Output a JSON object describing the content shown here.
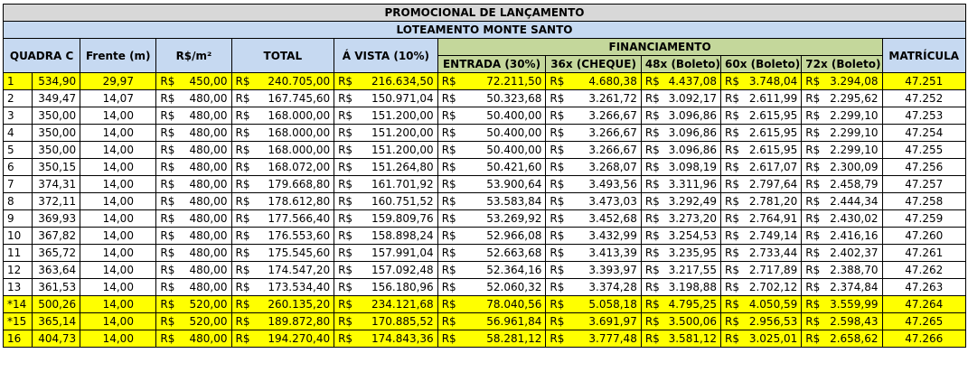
{
  "title": "PROMOCIONAL DE LANÇAMENTO",
  "subtitle": "LOTEAMENTO MONTE SANTO",
  "headers": {
    "quadra": "QUADRA C",
    "frente": "Frente (m)",
    "rs_m2": "R$/m²",
    "total": "TOTAL",
    "avista": "Á VISTA (10%)",
    "financiamento": "FINANCIAMENTO",
    "entrada": "ENTRADA (30%)",
    "p36": "36x (CHEQUE)",
    "p48": "48x (Boleto)",
    "p60": "60x (Boleto)",
    "p72": "72x (Boleto)",
    "matricula": "MATRÍCULA"
  },
  "currency": "R$",
  "highlight_color": "#ffff00",
  "rows": [
    {
      "lote": "1",
      "area": "534,90",
      "frente": "29,97",
      "m2": "450,00",
      "total": "240.705,00",
      "avista": "216.634,50",
      "entrada": "72.211,50",
      "p36": "4.680,38",
      "p48": "4.437,08",
      "p60": "3.748,04",
      "p72": "3.294,08",
      "matricula": "47.251",
      "highlight": true
    },
    {
      "lote": "2",
      "area": "349,47",
      "frente": "14,07",
      "m2": "480,00",
      "total": "167.745,60",
      "avista": "150.971,04",
      "entrada": "50.323,68",
      "p36": "3.261,72",
      "p48": "3.092,17",
      "p60": "2.611,99",
      "p72": "2.295,62",
      "matricula": "47.252",
      "highlight": false
    },
    {
      "lote": "3",
      "area": "350,00",
      "frente": "14,00",
      "m2": "480,00",
      "total": "168.000,00",
      "avista": "151.200,00",
      "entrada": "50.400,00",
      "p36": "3.266,67",
      "p48": "3.096,86",
      "p60": "2.615,95",
      "p72": "2.299,10",
      "matricula": "47.253",
      "highlight": false
    },
    {
      "lote": "4",
      "area": "350,00",
      "frente": "14,00",
      "m2": "480,00",
      "total": "168.000,00",
      "avista": "151.200,00",
      "entrada": "50.400,00",
      "p36": "3.266,67",
      "p48": "3.096,86",
      "p60": "2.615,95",
      "p72": "2.299,10",
      "matricula": "47.254",
      "highlight": false
    },
    {
      "lote": "5",
      "area": "350,00",
      "frente": "14,00",
      "m2": "480,00",
      "total": "168.000,00",
      "avista": "151.200,00",
      "entrada": "50.400,00",
      "p36": "3.266,67",
      "p48": "3.096,86",
      "p60": "2.615,95",
      "p72": "2.299,10",
      "matricula": "47.255",
      "highlight": false
    },
    {
      "lote": "6",
      "area": "350,15",
      "frente": "14,00",
      "m2": "480,00",
      "total": "168.072,00",
      "avista": "151.264,80",
      "entrada": "50.421,60",
      "p36": "3.268,07",
      "p48": "3.098,19",
      "p60": "2.617,07",
      "p72": "2.300,09",
      "matricula": "47.256",
      "highlight": false
    },
    {
      "lote": "7",
      "area": "374,31",
      "frente": "14,00",
      "m2": "480,00",
      "total": "179.668,80",
      "avista": "161.701,92",
      "entrada": "53.900,64",
      "p36": "3.493,56",
      "p48": "3.311,96",
      "p60": "2.797,64",
      "p72": "2.458,79",
      "matricula": "47.257",
      "highlight": false
    },
    {
      "lote": "8",
      "area": "372,11",
      "frente": "14,00",
      "m2": "480,00",
      "total": "178.612,80",
      "avista": "160.751,52",
      "entrada": "53.583,84",
      "p36": "3.473,03",
      "p48": "3.292,49",
      "p60": "2.781,20",
      "p72": "2.444,34",
      "matricula": "47.258",
      "highlight": false
    },
    {
      "lote": "9",
      "area": "369,93",
      "frente": "14,00",
      "m2": "480,00",
      "total": "177.566,40",
      "avista": "159.809,76",
      "entrada": "53.269,92",
      "p36": "3.452,68",
      "p48": "3.273,20",
      "p60": "2.764,91",
      "p72": "2.430,02",
      "matricula": "47.259",
      "highlight": false
    },
    {
      "lote": "10",
      "area": "367,82",
      "frente": "14,00",
      "m2": "480,00",
      "total": "176.553,60",
      "avista": "158.898,24",
      "entrada": "52.966,08",
      "p36": "3.432,99",
      "p48": "3.254,53",
      "p60": "2.749,14",
      "p72": "2.416,16",
      "matricula": "47.260",
      "highlight": false
    },
    {
      "lote": "11",
      "area": "365,72",
      "frente": "14,00",
      "m2": "480,00",
      "total": "175.545,60",
      "avista": "157.991,04",
      "entrada": "52.663,68",
      "p36": "3.413,39",
      "p48": "3.235,95",
      "p60": "2.733,44",
      "p72": "2.402,37",
      "matricula": "47.261",
      "highlight": false
    },
    {
      "lote": "12",
      "area": "363,64",
      "frente": "14,00",
      "m2": "480,00",
      "total": "174.547,20",
      "avista": "157.092,48",
      "entrada": "52.364,16",
      "p36": "3.393,97",
      "p48": "3.217,55",
      "p60": "2.717,89",
      "p72": "2.388,70",
      "matricula": "47.262",
      "highlight": false
    },
    {
      "lote": "13",
      "area": "361,53",
      "frente": "14,00",
      "m2": "480,00",
      "total": "173.534,40",
      "avista": "156.180,96",
      "entrada": "52.060,32",
      "p36": "3.374,28",
      "p48": "3.198,88",
      "p60": "2.702,12",
      "p72": "2.374,84",
      "matricula": "47.263",
      "highlight": false
    },
    {
      "lote": "*14",
      "area": "500,26",
      "frente": "14,00",
      "m2": "520,00",
      "total": "260.135,20",
      "avista": "234.121,68",
      "entrada": "78.040,56",
      "p36": "5.058,18",
      "p48": "4.795,25",
      "p60": "4.050,59",
      "p72": "3.559,99",
      "matricula": "47.264",
      "highlight": true
    },
    {
      "lote": "*15",
      "area": "365,14",
      "frente": "14,00",
      "m2": "520,00",
      "total": "189.872,80",
      "avista": "170.885,52",
      "entrada": "56.961,84",
      "p36": "3.691,97",
      "p48": "3.500,06",
      "p60": "2.956,53",
      "p72": "2.598,43",
      "matricula": "47.265",
      "highlight": true
    },
    {
      "lote": "16",
      "area": "404,73",
      "frente": "14,00",
      "m2": "480,00",
      "total": "194.270,40",
      "avista": "174.843,36",
      "entrada": "58.281,12",
      "p36": "3.777,48",
      "p48": "3.581,12",
      "p60": "3.025,01",
      "p72": "2.658,62",
      "matricula": "47.266",
      "highlight": true
    }
  ]
}
